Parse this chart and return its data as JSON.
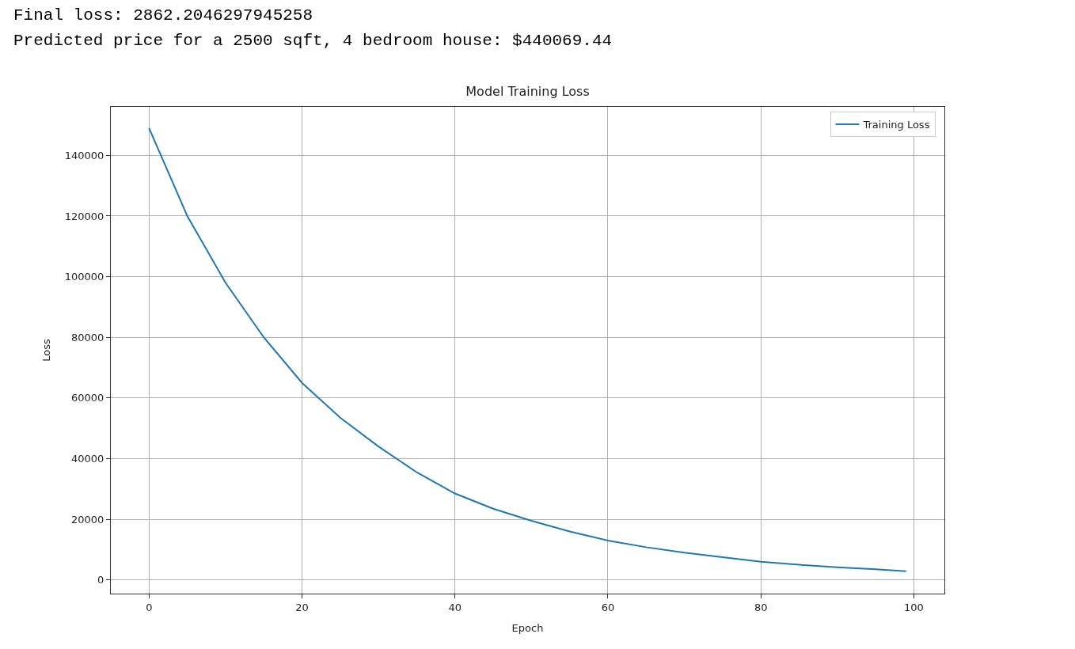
{
  "chart_data": {
    "type": "line",
    "title": "Model Training Loss",
    "xlabel": "Epoch",
    "ylabel": "Loss",
    "annotations": [
      "Final loss: 2862.2046297945258",
      "Predicted price for a 2500 sqft, 4 bedroom house: $440069.44"
    ],
    "x": [
      0,
      5,
      10,
      15,
      20,
      25,
      30,
      35,
      40,
      45,
      50,
      55,
      60,
      65,
      70,
      75,
      80,
      85,
      90,
      95,
      99
    ],
    "series": [
      {
        "name": "Training Loss",
        "color": "#1f77b4",
        "values": [
          149000,
          120000,
          98000,
          80000,
          65000,
          53500,
          44000,
          35500,
          28500,
          23500,
          19500,
          16000,
          13000,
          10800,
          9000,
          7500,
          6000,
          5000,
          4200,
          3500,
          2862
        ]
      }
    ],
    "xlim": [
      -5,
      104
    ],
    "xticks": [
      0,
      20,
      40,
      60,
      80,
      100
    ],
    "ylim": [
      -4500,
      156000
    ],
    "yticks": [
      0,
      20000,
      40000,
      60000,
      80000,
      100000,
      120000,
      140000
    ],
    "grid": true,
    "legend": "top right",
    "marker": "none",
    "line_style": "solid"
  }
}
